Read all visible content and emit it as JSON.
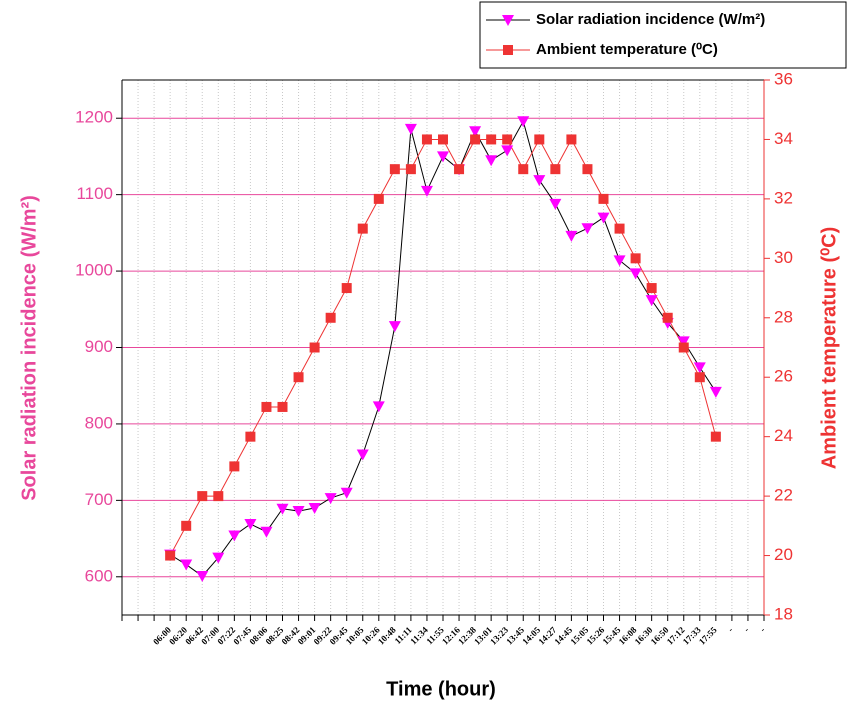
{
  "chart_data": {
    "type": "line",
    "x_label": "Time (hour)",
    "y_label": "Solar radiation incidence (W/m²)",
    "y2_label": "Ambient temperature (⁰C)",
    "categories": [
      null,
      null,
      null,
      "06:00",
      "06:20",
      "06:42",
      "07:00",
      "07:22",
      "07:45",
      "08:06",
      "08:25",
      "08:42",
      "09:01",
      "09:22",
      "09:45",
      "10:05",
      "10:26",
      "10:48",
      "11:11",
      "11:34",
      "11:55",
      "12:16",
      "12:38",
      "13:01",
      "13:23",
      "13:45",
      "14:05",
      "14:27",
      "14:45",
      "15:05",
      "15:26",
      "15:45",
      "16:08",
      "16:30",
      "16:50",
      "17:12",
      "17:33",
      "17:55",
      "-",
      "-",
      "-"
    ],
    "series": [
      {
        "name": "Solar radiation incidence (W/m²)",
        "color": "#ff00ff",
        "line_color": "#000000",
        "marker": "triangle-down",
        "axis": "y",
        "values": [
          null,
          null,
          null,
          629,
          616,
          601,
          625,
          654,
          669,
          659,
          689,
          686,
          690,
          703,
          710,
          760,
          823,
          928,
          1186,
          1105,
          1150,
          1133,
          1183,
          1145,
          1158,
          1196,
          1119,
          1088,
          1046,
          1056,
          1070,
          1014,
          997,
          962,
          932,
          908,
          874,
          842,
          null,
          null,
          null
        ]
      },
      {
        "name": "Ambient temperature (⁰C)",
        "color": "#ee3333",
        "line_color": "#ee3333",
        "marker": "square",
        "axis": "y2",
        "values": [
          null,
          null,
          null,
          20,
          21,
          22,
          22,
          23,
          24,
          25,
          25,
          26,
          27,
          28,
          29,
          31,
          32,
          33,
          33,
          34,
          34,
          33,
          34,
          34,
          34,
          33,
          34,
          33,
          34,
          33,
          32,
          31,
          30,
          29,
          28,
          27,
          26,
          24,
          null,
          null,
          null
        ]
      }
    ],
    "ylim": [
      550,
      1250
    ],
    "yticks": [
      600,
      700,
      800,
      900,
      1000,
      1100,
      1200
    ],
    "y2lim": [
      18,
      36
    ],
    "y2ticks": [
      18,
      20,
      22,
      24,
      26,
      28,
      30,
      32,
      34,
      36
    ],
    "y_color": "#e8479b",
    "y2_color": "#ee3333",
    "grid_color": "#e8479b",
    "grid": true,
    "legend": "top-right"
  }
}
